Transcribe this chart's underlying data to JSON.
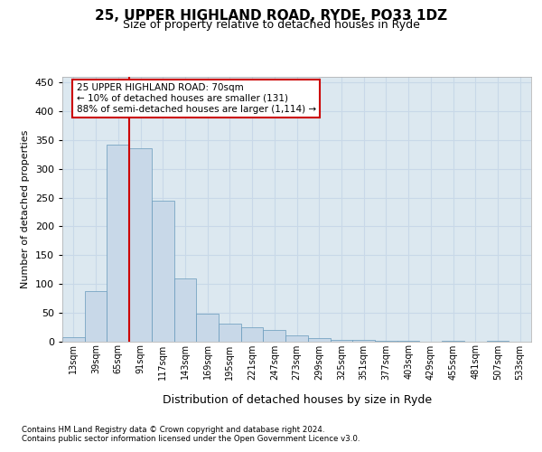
{
  "title_line1": "25, UPPER HIGHLAND ROAD, RYDE, PO33 1DZ",
  "title_line2": "Size of property relative to detached houses in Ryde",
  "xlabel": "Distribution of detached houses by size in Ryde",
  "ylabel": "Number of detached properties",
  "categories": [
    "13sqm",
    "39sqm",
    "65sqm",
    "91sqm",
    "117sqm",
    "143sqm",
    "169sqm",
    "195sqm",
    "221sqm",
    "247sqm",
    "273sqm",
    "299sqm",
    "325sqm",
    "351sqm",
    "377sqm",
    "403sqm",
    "429sqm",
    "455sqm",
    "481sqm",
    "507sqm",
    "533sqm"
  ],
  "bar_values": [
    7,
    87,
    342,
    335,
    245,
    110,
    48,
    31,
    24,
    20,
    10,
    5,
    3,
    2,
    1,
    1,
    0,
    1,
    0,
    1,
    0
  ],
  "bar_color": "#c8d8e8",
  "bar_edge_color": "#6699bb",
  "grid_color": "#c8d8e8",
  "vline_x": 2.5,
  "vline_color": "#cc0000",
  "annotation_text": "25 UPPER HIGHLAND ROAD: 70sqm\n← 10% of detached houses are smaller (131)\n88% of semi-detached houses are larger (1,114) →",
  "annotation_box_color": "#cc0000",
  "annotation_text_color": "#000000",
  "ylim": [
    0,
    460
  ],
  "yticks": [
    0,
    50,
    100,
    150,
    200,
    250,
    300,
    350,
    400,
    450
  ],
  "footer_line1": "Contains HM Land Registry data © Crown copyright and database right 2024.",
  "footer_line2": "Contains public sector information licensed under the Open Government Licence v3.0.",
  "bg_color": "#ffffff",
  "plot_bg_color": "#dce8f0"
}
